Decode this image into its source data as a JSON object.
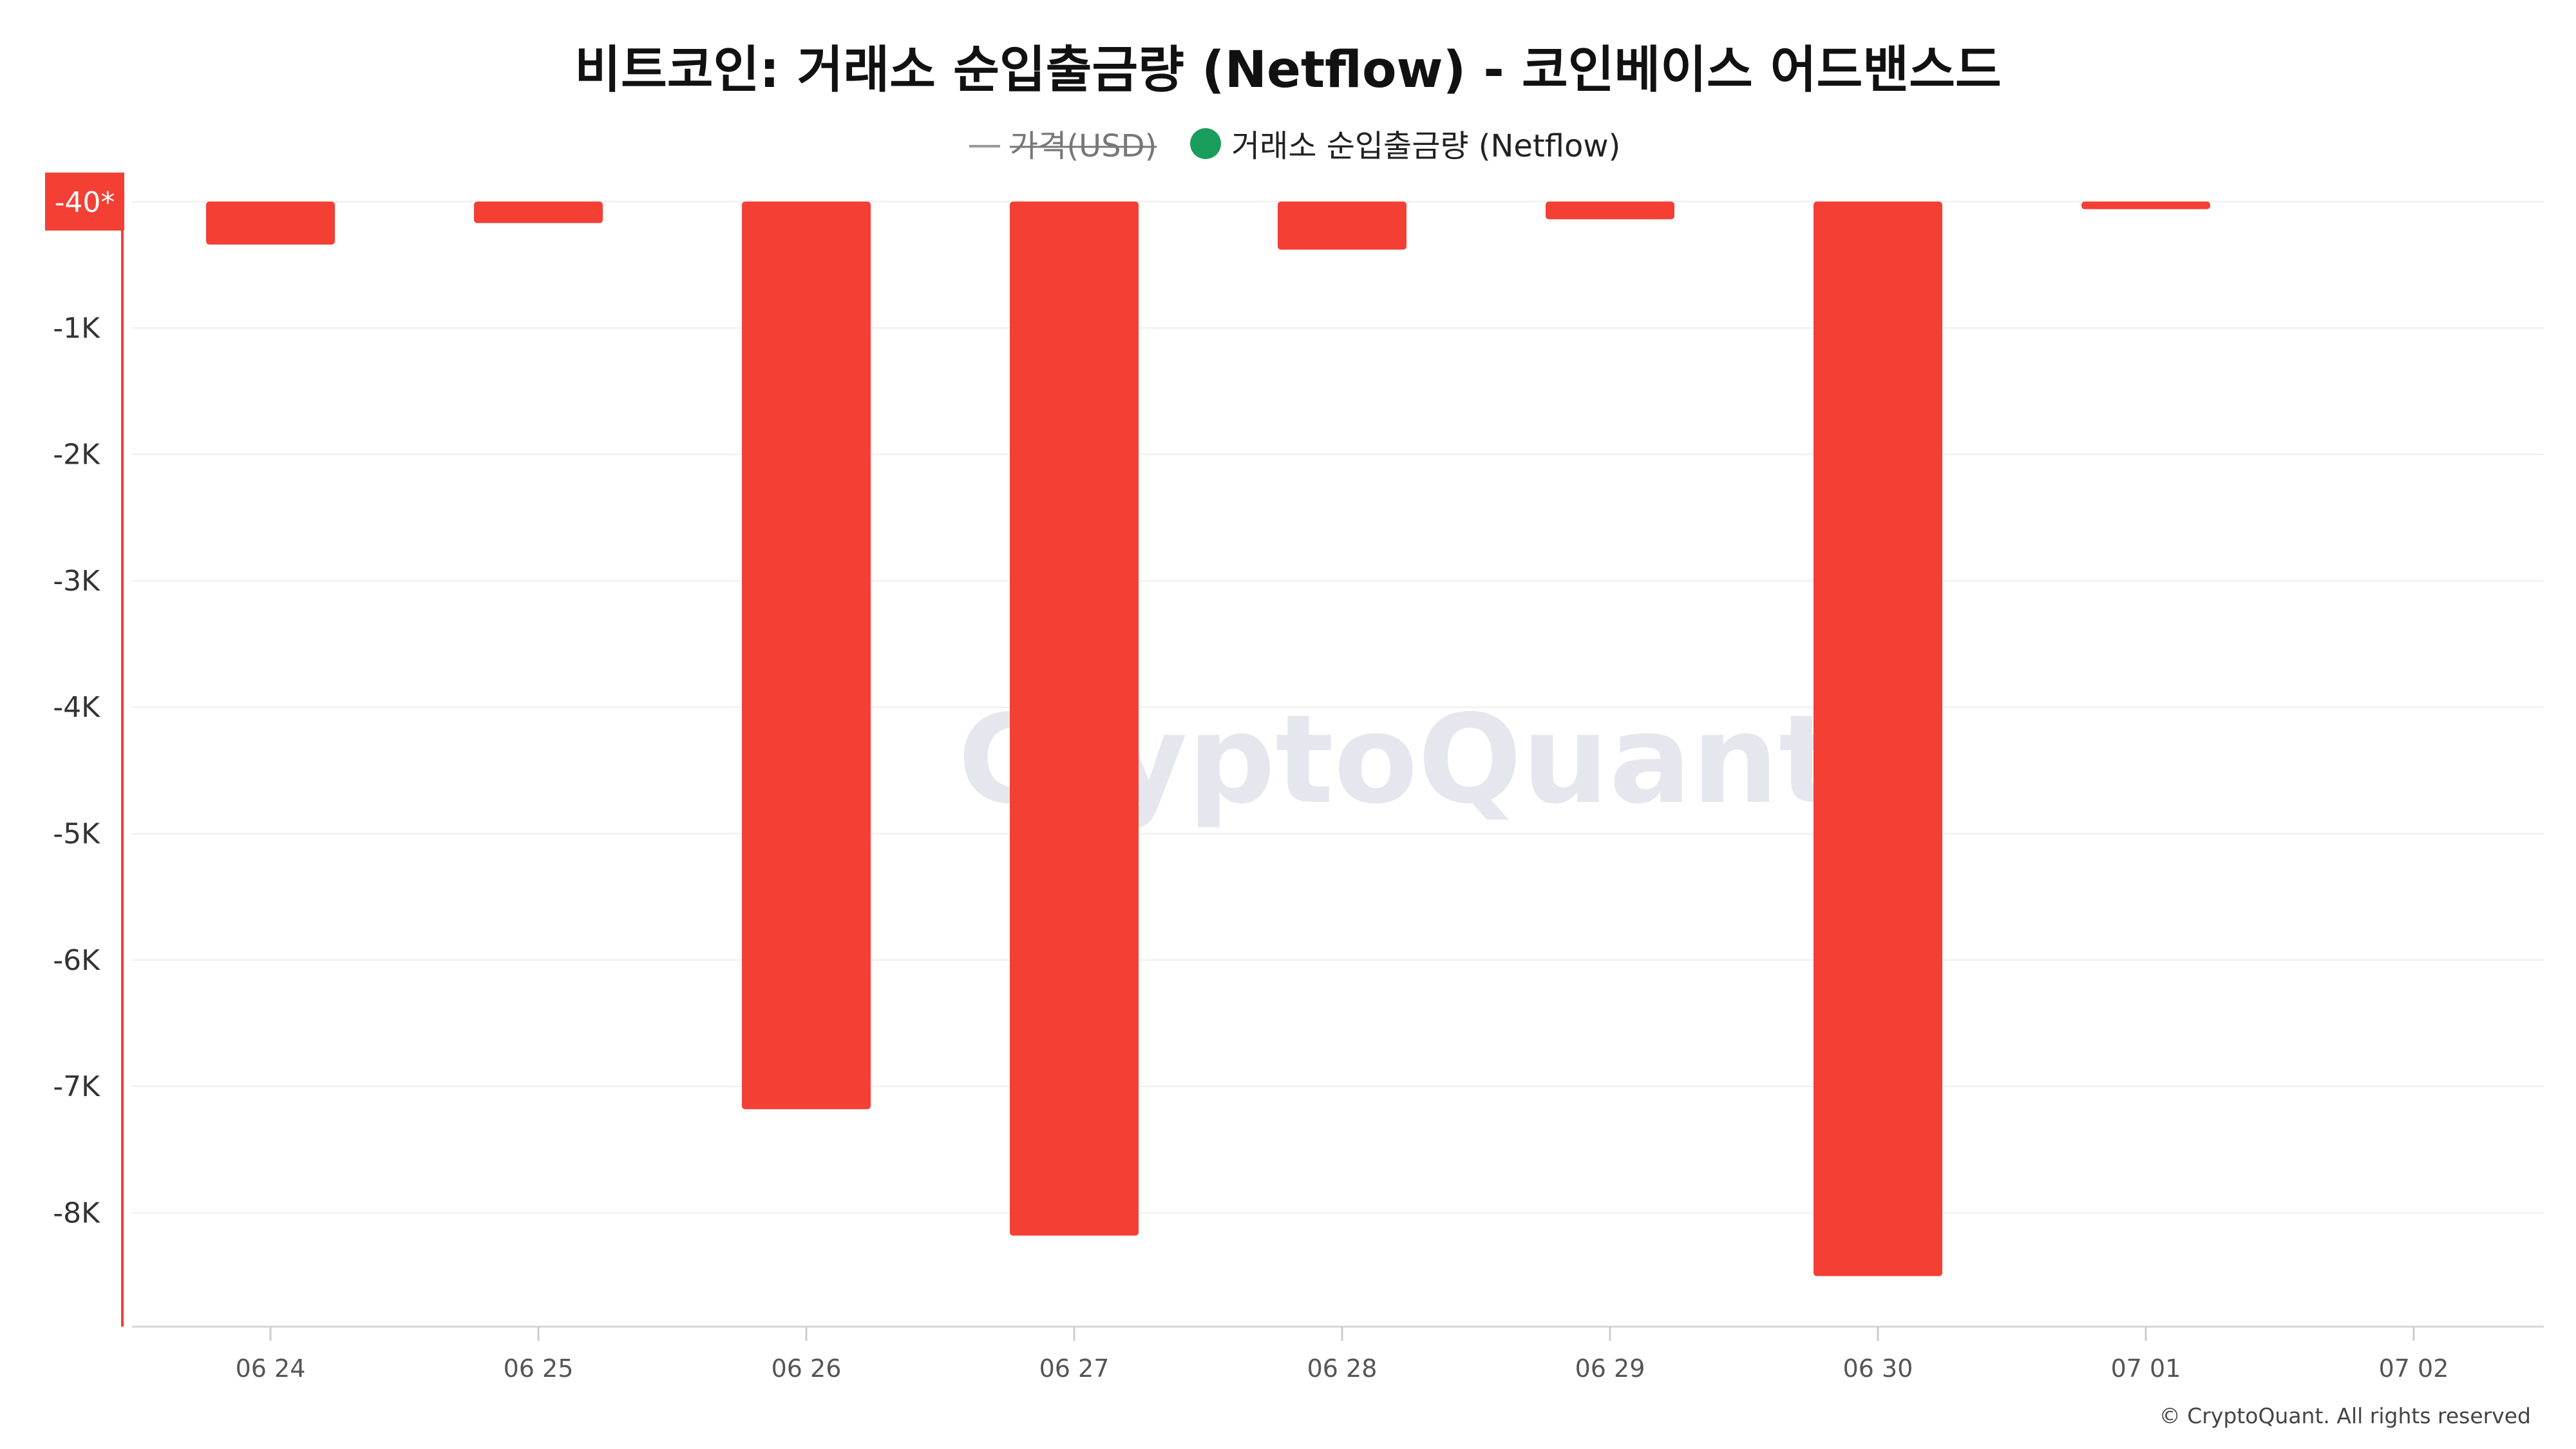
{
  "chart_data": {
    "type": "bar",
    "title": "비트코인: 거래소 순입출금량 (Netflow) - 코인베이스 어드밴스드",
    "legend": {
      "placement": "top-center",
      "entries": [
        {
          "label": "가격(USD)",
          "hidden": true,
          "symbol": "line",
          "color": "#888888"
        },
        {
          "label": "거래소 순입출금량 (Netflow)",
          "hidden": false,
          "symbol": "dot",
          "color": "#1a9c5a"
        }
      ]
    },
    "categories": [
      "06 24",
      "06 25",
      "06 26",
      "06 27",
      "06 28",
      "06 29",
      "06 30",
      "07 01",
      "07 02"
    ],
    "series": [
      {
        "name": "거래소 순입출금량 (Netflow)",
        "color": "#f43f35",
        "values": [
          -340,
          -170,
          -7180,
          -8180,
          -380,
          -140,
          -8500,
          -60,
          null
        ]
      }
    ],
    "ylim": [
      -8900,
      0
    ],
    "y_ticks": [
      {
        "value": -1000,
        "label": "-1K"
      },
      {
        "value": -2000,
        "label": "-2K"
      },
      {
        "value": -3000,
        "label": "-3K"
      },
      {
        "value": -4000,
        "label": "-4K"
      },
      {
        "value": -5000,
        "label": "-5K"
      },
      {
        "value": -6000,
        "label": "-6K"
      },
      {
        "value": -7000,
        "label": "-7K"
      },
      {
        "value": -8000,
        "label": "-8K"
      }
    ],
    "current_value_marker": {
      "label": "-40*",
      "color": "#f43f35"
    },
    "xlabel": "",
    "ylabel": "",
    "grid": true,
    "gridline_color": "#eeeeee"
  },
  "watermark": "CryptoQuant",
  "copyright": "© CryptoQuant. All rights reserved"
}
